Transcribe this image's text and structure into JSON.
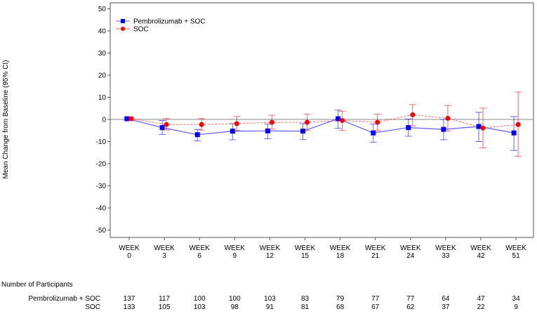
{
  "chart_data": {
    "type": "line",
    "ylabel": "Mean Change from Baseline (95% CI)",
    "ylim": [
      -50,
      50
    ],
    "yticks": [
      50,
      40,
      30,
      20,
      10,
      0,
      -10,
      -20,
      -30,
      -40,
      -50
    ],
    "categories": [
      "WEEK|0",
      "WEEK|3",
      "WEEK|6",
      "WEEK|9",
      "WEEK|12",
      "WEEK|15",
      "WEEK|18",
      "WEEK|21",
      "WEEK|24",
      "WEEK|33",
      "WEEK|42",
      "WEEK|51"
    ],
    "legend_position": "top-left",
    "reference_line": 0,
    "series": [
      {
        "name": "Pembrolizumab + SOC",
        "color": "#0000ff",
        "marker": "square",
        "values": [
          0.3,
          -3.7,
          -6.9,
          -5.3,
          -5.2,
          -5.3,
          0.3,
          -6.1,
          -3.7,
          -4.5,
          -3.2,
          -6.1
        ],
        "lower": [
          -0.3,
          -6.8,
          -9.7,
          -9.2,
          -8.7,
          -9.1,
          -4.0,
          -10.3,
          -7.6,
          -9.2,
          -10.0,
          -14.0
        ],
        "upper": [
          0.9,
          -0.5,
          -4.5,
          -1.9,
          -2.1,
          -1.9,
          4.2,
          -2.1,
          0.2,
          0.0,
          3.2,
          1.3
        ]
      },
      {
        "name": "SOC",
        "color": "#ff0000",
        "marker": "circle",
        "values": [
          0.3,
          -2.3,
          -2.3,
          -1.9,
          -1.3,
          -1.3,
          -0.5,
          -1.3,
          2.1,
          0.5,
          -3.9,
          -2.3
        ],
        "lower": [
          -0.3,
          -4.8,
          -4.8,
          -5.0,
          -4.4,
          -5.0,
          -4.9,
          -5.0,
          -2.9,
          -5.3,
          -12.9,
          -16.7
        ],
        "upper": [
          0.9,
          0.4,
          0.4,
          1.3,
          1.9,
          2.4,
          3.7,
          2.4,
          6.7,
          6.3,
          5.1,
          12.4
        ]
      }
    ]
  },
  "participants": {
    "title": "Number of Participants",
    "rows": [
      {
        "label": "Pembrolizumab + SOC",
        "counts": [
          "137",
          "117",
          "100",
          "100",
          "103",
          "83",
          "79",
          "77",
          "77",
          "64",
          "47",
          "34"
        ]
      },
      {
        "label": "SOC",
        "counts": [
          "133",
          "105",
          "103",
          "98",
          "91",
          "81",
          "68",
          "67",
          "62",
          "37",
          "22",
          "9"
        ]
      }
    ]
  }
}
